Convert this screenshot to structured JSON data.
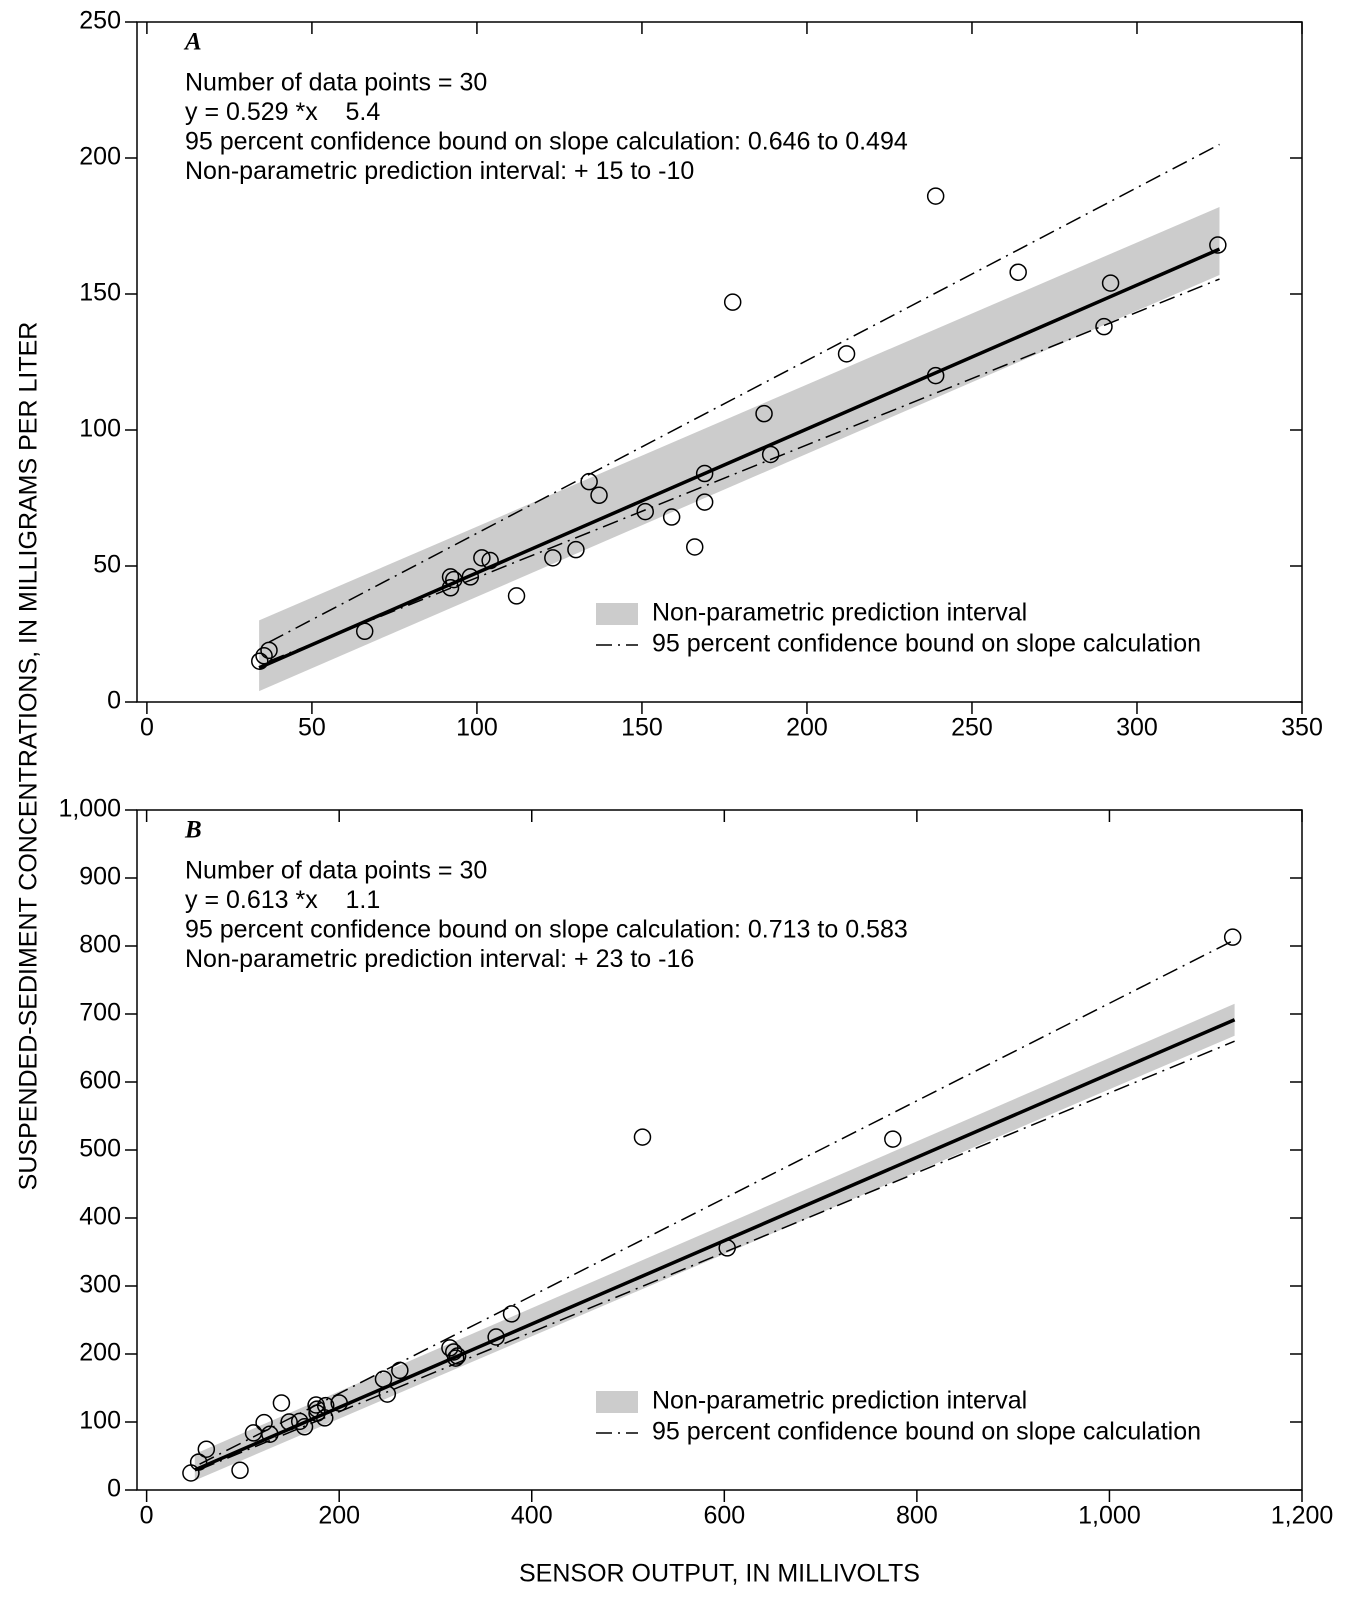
{
  "chart_data": [
    {
      "type": "scatter",
      "panel_label": "A",
      "ylabel": "SUSPENDED-SEDIMENT CONCENTRATIONS, IN MILLIGRAMS PER LITER",
      "annotations": [
        "Number of data points = 30",
        "y = 0.529 *x    5.4",
        "95 percent confidence bound on slope calculation: 0.646 to 0.494",
        "Non-parametric prediction interval: + 15 to -10"
      ],
      "xlim": [
        -3,
        350
      ],
      "xticks": [
        0,
        50,
        100,
        150,
        200,
        250,
        300,
        350
      ],
      "ylim": [
        0,
        250
      ],
      "yticks": [
        0,
        50,
        100,
        150,
        200,
        250
      ],
      "legend": "lower right",
      "band": {
        "name": "Non-parametric prediction interval",
        "color": "#cccccc",
        "x": [
          34,
          325
        ],
        "upper": [
          30,
          182
        ],
        "lower": [
          4,
          157
        ]
      },
      "bounds": {
        "name": "95 percent confidence bound on slope calculation",
        "color": "#000000",
        "x": [
          37,
          325
        ],
        "upper": [
          22,
          205
        ],
        "lower": [
          15,
          155.5
        ]
      },
      "fit": {
        "color": "#000000",
        "x": [
          34,
          325
        ],
        "y": [
          12.6,
          166.5
        ]
      },
      "points": {
        "color": "#000000",
        "x": [
          34.2,
          35.5,
          37,
          66,
          92,
          92,
          93,
          98,
          101.5,
          104,
          112,
          123,
          130,
          134,
          137,
          151,
          159,
          166,
          169,
          169,
          177.5,
          187,
          189,
          212,
          239,
          239,
          264,
          290,
          292,
          324.5
        ],
        "y": [
          15,
          17,
          19,
          26,
          42,
          46,
          45,
          46,
          53,
          52,
          39,
          53,
          56,
          81,
          76,
          70,
          68,
          57,
          84,
          73.5,
          147,
          106,
          91,
          128,
          120,
          186,
          158,
          138,
          154,
          168
        ]
      }
    },
    {
      "type": "scatter",
      "panel_label": "B",
      "xlabel": "SENSOR OUTPUT, IN MILLIVOLTS",
      "annotations": [
        "Number of data points = 30",
        "y = 0.613 *x    1.1",
        "95 percent confidence bound on slope calculation: 0.713 to 0.583",
        "Non-parametric prediction interval: + 23 to -16"
      ],
      "xlim": [
        -10,
        1200
      ],
      "xticks": [
        0,
        200,
        400,
        600,
        800,
        {
          "value": 1000,
          "label": "1,000"
        },
        {
          "value": 1200,
          "label": "1,200"
        }
      ],
      "ylim": [
        0,
        1000
      ],
      "yticks": [
        0,
        100,
        200,
        300,
        400,
        500,
        600,
        700,
        800,
        900,
        {
          "value": 1000,
          "label": "1,000"
        }
      ],
      "legend": "lower right",
      "band": {
        "name": "Non-parametric prediction interval",
        "color": "#cccccc",
        "x": [
          50,
          1130
        ],
        "upper": [
          53,
          715
        ],
        "lower": [
          14,
          668
        ]
      },
      "bounds": {
        "name": "95 percent confidence bound on slope calculation",
        "color": "#000000",
        "x": [
          55,
          1130
        ],
        "upper": [
          38,
          809
        ],
        "lower": [
          30,
          660
        ]
      },
      "fit": {
        "color": "#000000",
        "x": [
          50,
          1130
        ],
        "y": [
          29.5,
          691.6
        ]
      },
      "points": {
        "color": "#000000",
        "x": [
          46,
          54,
          62,
          97,
          111,
          122,
          128,
          140,
          148,
          159,
          164,
          176,
          177,
          177,
          186,
          185,
          200,
          246,
          250,
          263,
          315,
          319,
          323,
          321,
          363,
          379,
          515,
          603,
          775,
          1128
        ],
        "y": [
          25,
          41,
          60,
          29,
          84,
          99,
          82,
          128,
          100,
          101,
          93,
          125,
          113,
          119,
          124,
          106,
          128,
          163,
          141,
          176,
          209,
          203,
          197,
          194,
          225,
          259,
          519,
          356,
          516,
          813
        ]
      }
    }
  ]
}
